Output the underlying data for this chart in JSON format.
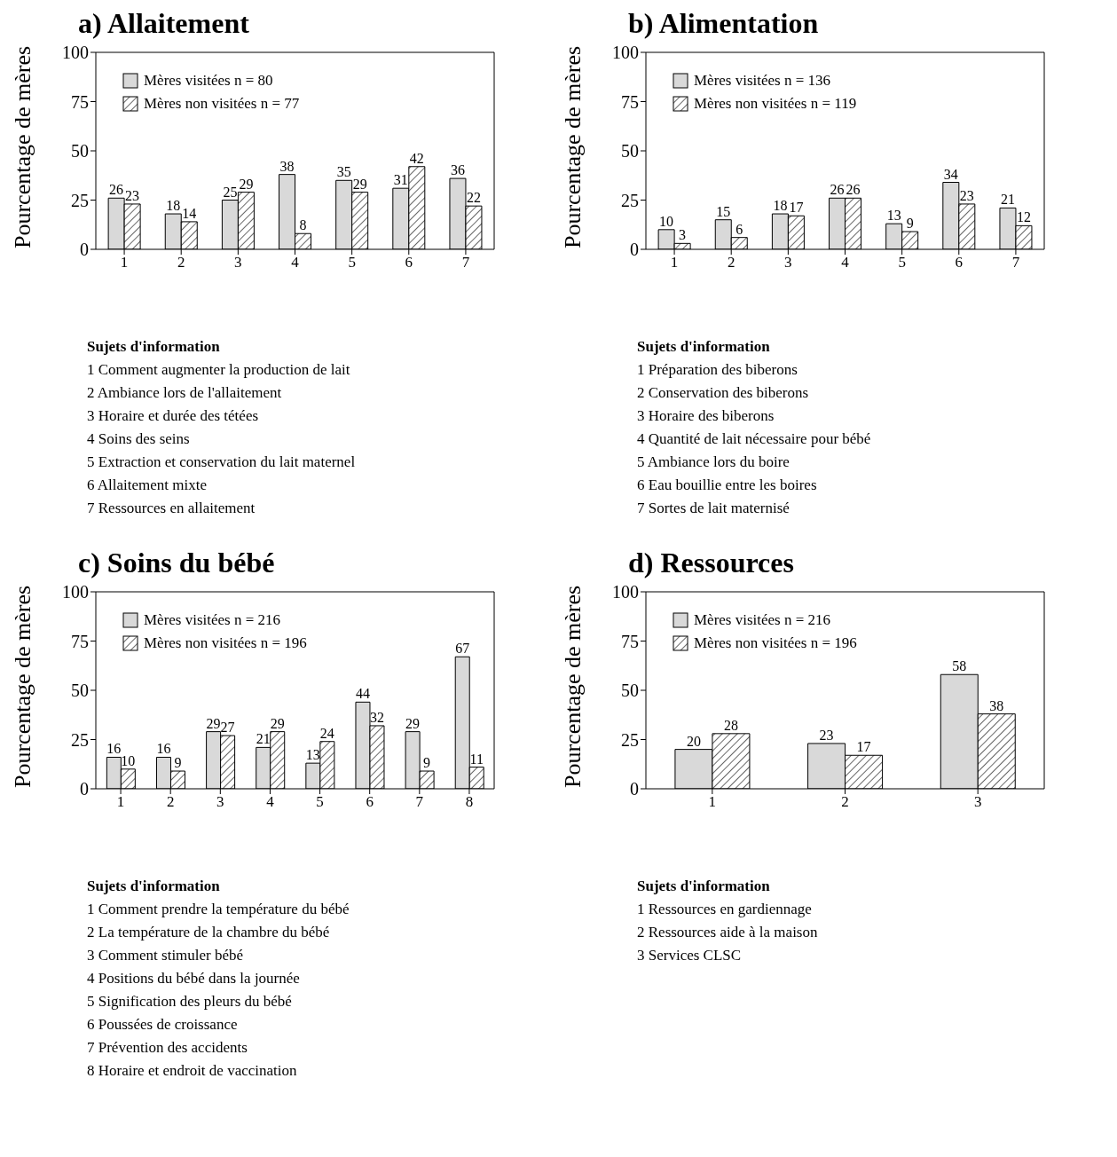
{
  "chart_data": [
    {
      "type": "bar",
      "title": "a) Allaitement",
      "ylabel": "Pourcentage de mères",
      "categories": [
        "1",
        "2",
        "3",
        "4",
        "5",
        "6",
        "7"
      ],
      "ylim": [
        0,
        100
      ],
      "yticks": [
        0,
        25,
        50,
        75,
        100
      ],
      "grid": false,
      "legend": "top left",
      "data_labels": true,
      "series": [
        {
          "name": "Mères visitées n = 80",
          "color": "#d9d9d9",
          "values": [
            26,
            18,
            25,
            38,
            35,
            31,
            36
          ]
        },
        {
          "name": "Mères non visitées n = 77",
          "color": "#000000",
          "values": [
            23,
            14,
            29,
            8,
            29,
            42,
            22
          ]
        }
      ],
      "annotations": [
        "Sujets d'information",
        "1 Comment augmenter la production de lait",
        "2 Ambiance lors de l'allaitement",
        "3 Horaire et durée des tétées",
        "4 Soins des seins",
        "5 Extraction et conservation du lait maternel",
        "6 Allaitement mixte",
        "7 Ressources en allaitement"
      ]
    },
    {
      "type": "bar",
      "title": "b) Alimentation",
      "ylabel": "Pourcentage de mères",
      "categories": [
        "1",
        "2",
        "3",
        "4",
        "5",
        "6",
        "7"
      ],
      "ylim": [
        0,
        100
      ],
      "yticks": [
        0,
        25,
        50,
        75,
        100
      ],
      "grid": false,
      "legend": "top left",
      "data_labels": true,
      "series": [
        {
          "name": "Mères visitées n = 136",
          "color": "#d9d9d9",
          "values": [
            10,
            15,
            18,
            26,
            13,
            34,
            21
          ]
        },
        {
          "name": "Mères non visitées n = 119",
          "color": "#000000",
          "values": [
            3,
            6,
            17,
            26,
            9,
            23,
            12
          ]
        }
      ],
      "annotations": [
        "Sujets d'information",
        "1 Préparation des biberons",
        "2 Conservation des biberons",
        "3 Horaire des biberons",
        "4 Quantité de lait nécessaire pour bébé",
        "5 Ambiance lors du boire",
        "6 Eau bouillie entre les boires",
        "7 Sortes de lait maternisé"
      ]
    },
    {
      "type": "bar",
      "title": "c) Soins du bébé",
      "ylabel": "Pourcentage de mères",
      "categories": [
        "1",
        "2",
        "3",
        "4",
        "5",
        "6",
        "7",
        "8"
      ],
      "ylim": [
        0,
        100
      ],
      "yticks": [
        0,
        25,
        50,
        75,
        100
      ],
      "grid": false,
      "legend": "top left",
      "data_labels": true,
      "series": [
        {
          "name": "Mères visitées n = 216",
          "color": "#d9d9d9",
          "values": [
            16,
            16,
            29,
            21,
            13,
            44,
            29,
            67
          ]
        },
        {
          "name": "Mères non visitées n = 196",
          "color": "#000000",
          "values": [
            10,
            9,
            27,
            29,
            24,
            32,
            9,
            11
          ]
        }
      ],
      "annotations": [
        "Sujets d'information",
        "1 Comment prendre la température du bébé",
        "2 La température de la chambre du bébé",
        "3 Comment stimuler bébé",
        "4 Positions du bébé dans la journée",
        "5 Signification des pleurs du bébé",
        "6 Poussées de croissance",
        "7 Prévention des accidents",
        "8 Horaire et endroit de vaccination"
      ]
    },
    {
      "type": "bar",
      "title": "d) Ressources",
      "ylabel": "Pourcentage de mères",
      "categories": [
        "1",
        "2",
        "3"
      ],
      "ylim": [
        0,
        100
      ],
      "yticks": [
        0,
        25,
        50,
        75,
        100
      ],
      "grid": false,
      "legend": "top left",
      "data_labels": true,
      "series": [
        {
          "name": "Mères visitées n = 216",
          "color": "#d9d9d9",
          "values": [
            20,
            23,
            58
          ]
        },
        {
          "name": "Mères non visitées n = 196",
          "color": "#000000",
          "values": [
            28,
            17,
            38
          ]
        }
      ],
      "annotations": [
        "Sujets d'information",
        "1 Ressources en gardiennage",
        "2 Ressources aide à la maison",
        "3 Services CLSC"
      ]
    }
  ]
}
